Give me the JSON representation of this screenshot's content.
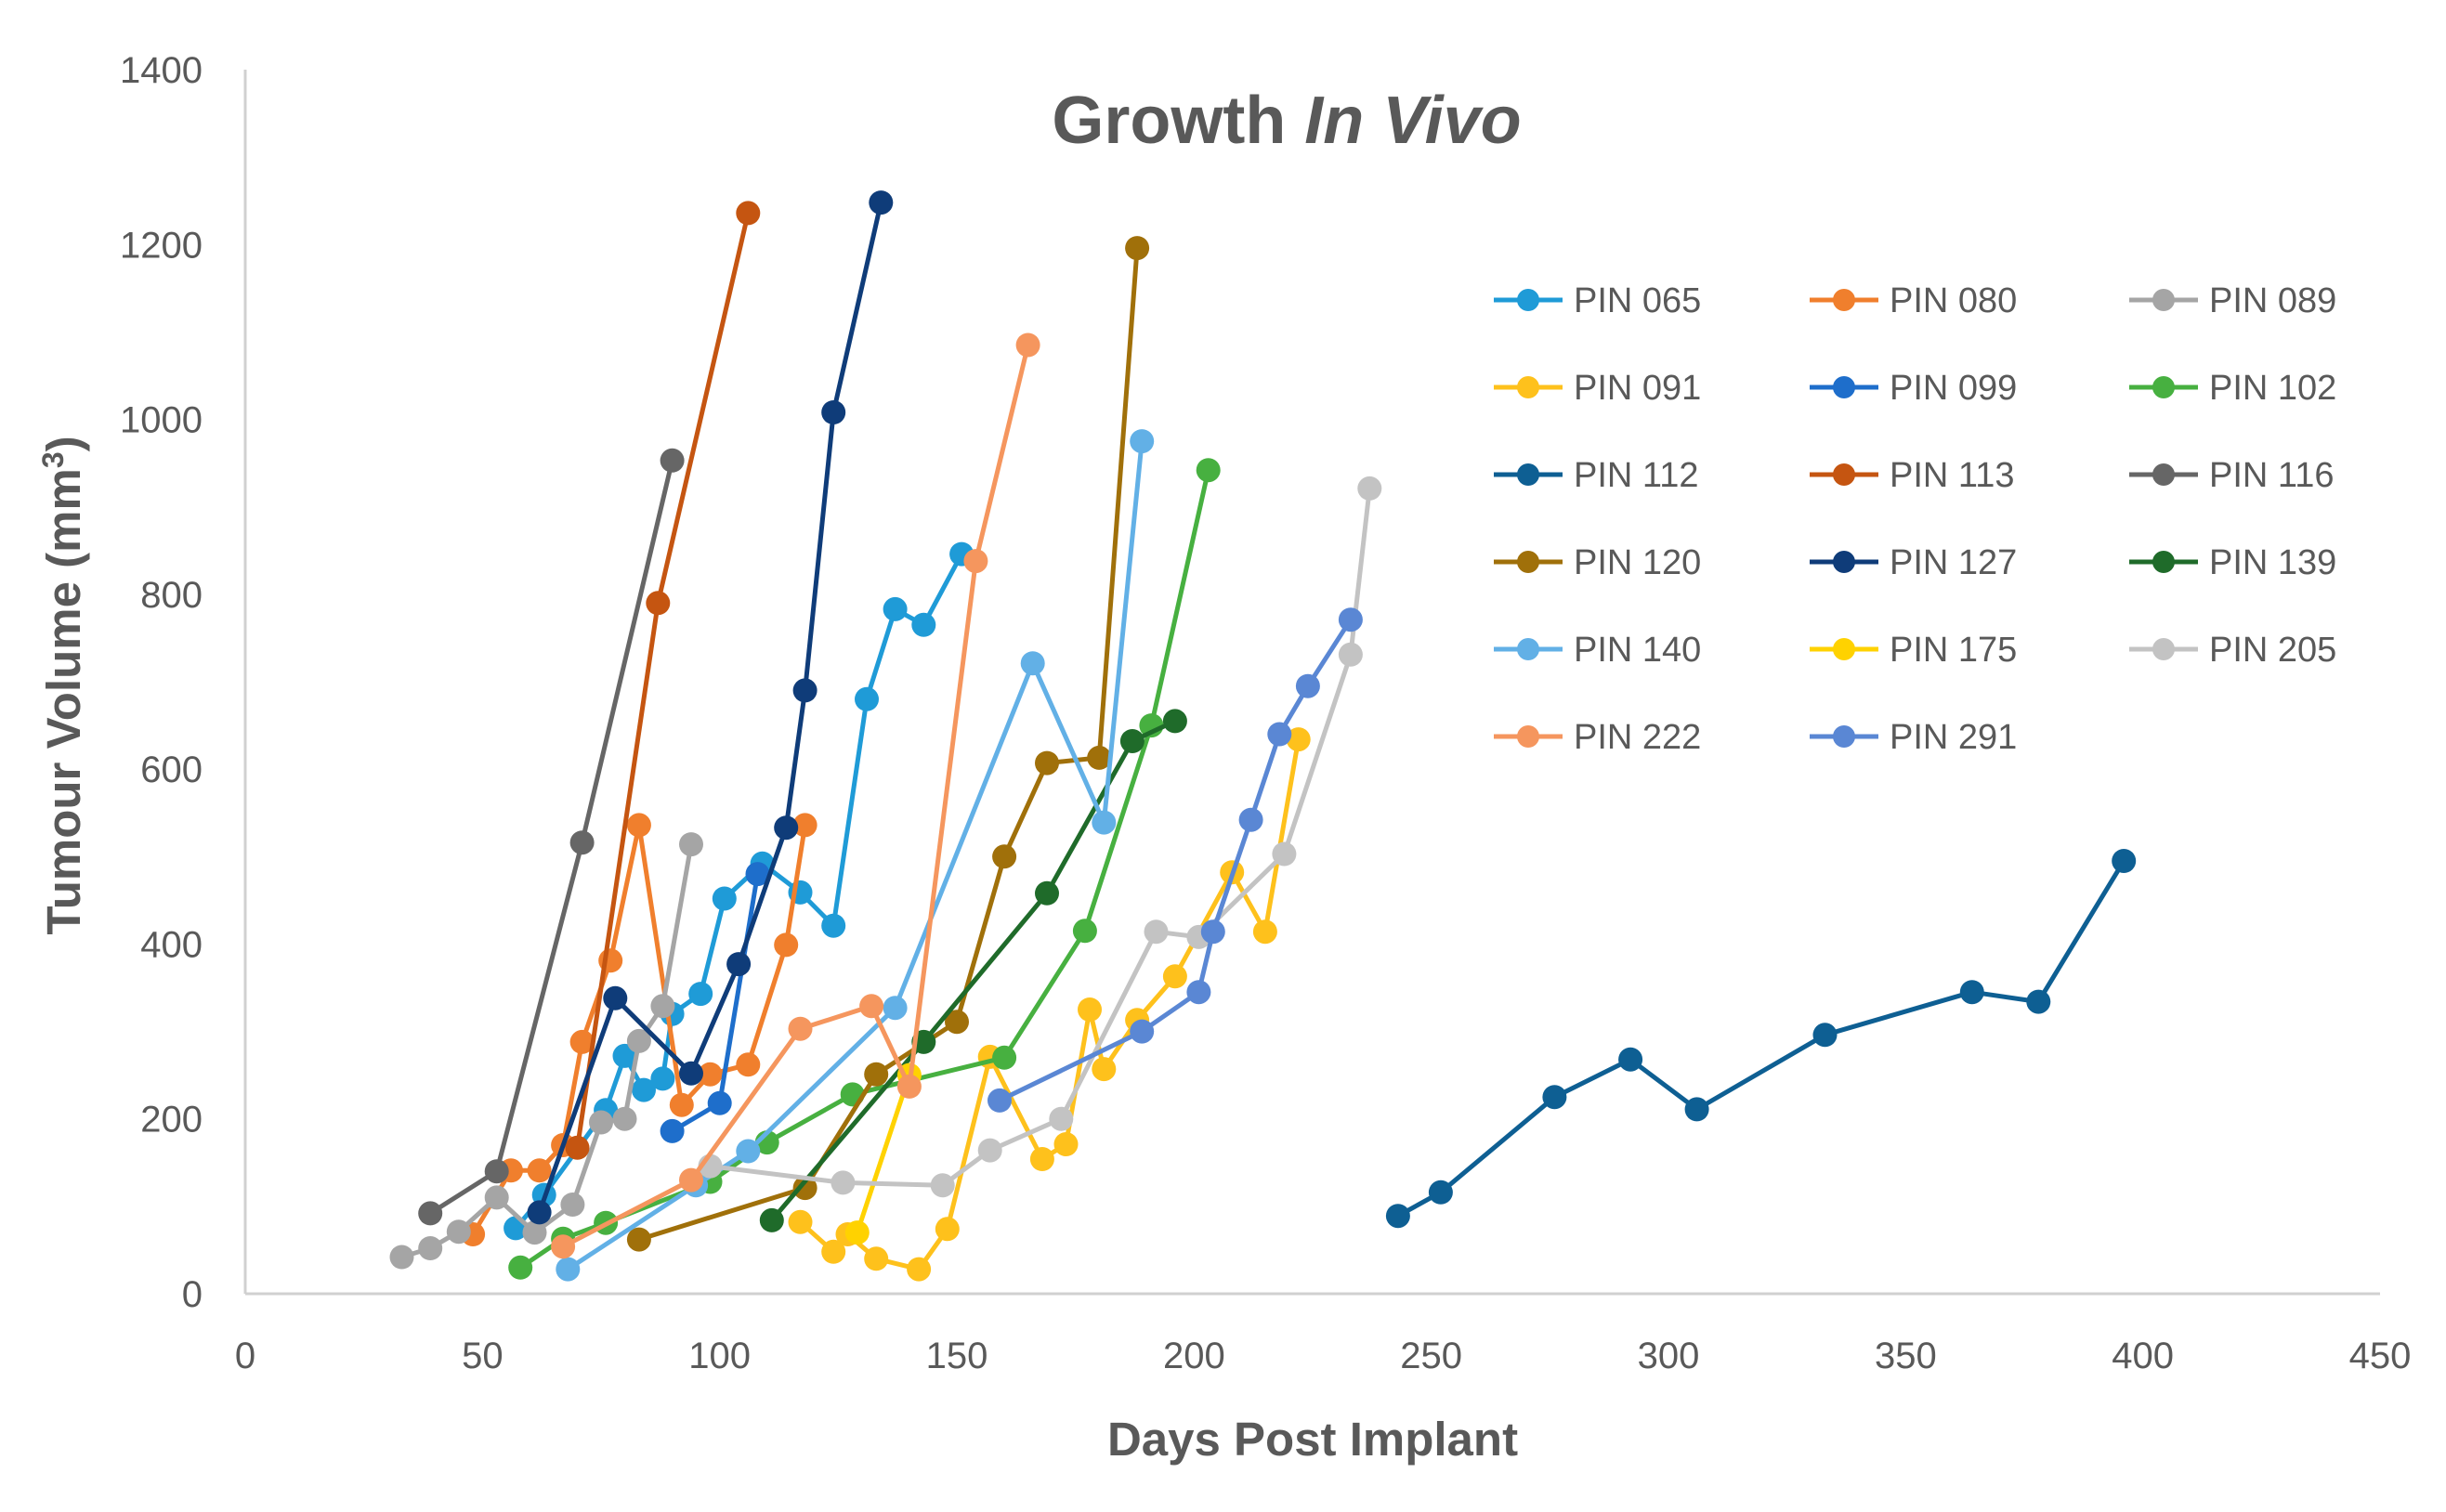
{
  "chart_data": {
    "type": "line",
    "title_main": "Growth ",
    "title_italic": "In Vivo",
    "xlabel": "Days Post Implant",
    "ylabel_main": "Tumour Volume (mm",
    "ylabel_sup": "3",
    "ylabel_close": ")",
    "xlim": [
      0,
      450
    ],
    "ylim": [
      0,
      1400
    ],
    "xticks": [
      0,
      50,
      100,
      150,
      200,
      250,
      300,
      350,
      400,
      450
    ],
    "yticks": [
      0,
      200,
      400,
      600,
      800,
      1000,
      1200,
      1400
    ],
    "grid": false,
    "legend_position": "right",
    "series": [
      {
        "name": "PIN 065",
        "color": "#1f9bd7",
        "x": [
          57,
          63,
          76,
          80,
          84,
          88,
          90,
          96,
          101,
          109,
          117,
          124,
          131,
          137,
          143,
          151
        ],
        "y": [
          75,
          113,
          210,
          272,
          233,
          246,
          320,
          343,
          452,
          492,
          459,
          421,
          680,
          783,
          765,
          846
        ]
      },
      {
        "name": "PIN 080",
        "color": "#f07f2d",
        "x": [
          48,
          56,
          62,
          67,
          71,
          77,
          83,
          92,
          98,
          106,
          114,
          118
        ],
        "y": [
          68,
          141,
          141,
          170,
          288,
          381,
          536,
          216,
          251,
          262,
          399,
          536
        ]
      },
      {
        "name": "PIN 089",
        "color": "#a5a5a5",
        "x": [
          33,
          39,
          45,
          53,
          61,
          69,
          75,
          80,
          83,
          88,
          94
        ],
        "y": [
          42,
          52,
          71,
          110,
          70,
          102,
          196,
          200,
          289,
          329,
          514
        ]
      },
      {
        "name": "PIN 091",
        "color": "#fec11c",
        "x": [
          117,
          124,
          127,
          133,
          142,
          148,
          157,
          168,
          173,
          178,
          181,
          188,
          196,
          208,
          215,
          222
        ],
        "y": [
          82,
          48,
          68,
          40,
          28,
          74,
          271,
          154,
          171,
          325,
          257,
          313,
          363,
          482,
          414,
          634
        ]
      },
      {
        "name": "PIN 099",
        "color": "#1e6ecb",
        "x": [
          90,
          100,
          108
        ],
        "y": [
          186,
          218,
          480
        ]
      },
      {
        "name": "PIN 102",
        "color": "#47b040",
        "x": [
          58,
          67,
          76,
          98,
          110,
          128,
          160,
          177,
          191,
          203
        ],
        "y": [
          30,
          63,
          81,
          128,
          173,
          228,
          270,
          415,
          650,
          942
        ]
      },
      {
        "name": "PIN 112",
        "color": "#0e5f93",
        "x": [
          243,
          252,
          276,
          292,
          306,
          333,
          364,
          378,
          396
        ],
        "y": [
          89,
          116,
          225,
          268,
          211,
          296,
          345,
          334,
          495
        ]
      },
      {
        "name": "PIN 113",
        "color": "#c55511",
        "x": [
          70,
          87,
          106
        ],
        "y": [
          167,
          790,
          1236
        ]
      },
      {
        "name": "PIN 116",
        "color": "#666666",
        "x": [
          39,
          53,
          71,
          90
        ],
        "y": [
          92,
          140,
          516,
          953
        ]
      },
      {
        "name": "PIN 120",
        "color": "#a0700a",
        "x": [
          83,
          118,
          133,
          150,
          160,
          169,
          180,
          188
        ],
        "y": [
          62,
          121,
          251,
          311,
          500,
          607,
          613,
          1196
        ]
      },
      {
        "name": "PIN 127",
        "color": "#0f3c79",
        "x": [
          62,
          78,
          94,
          104,
          114,
          118,
          124,
          134
        ],
        "y": [
          93,
          338,
          252,
          377,
          533,
          690,
          1008,
          1248
        ]
      },
      {
        "name": "PIN 139",
        "color": "#1f6b2a",
        "x": [
          111,
          143,
          169,
          187,
          196
        ],
        "y": [
          84,
          288,
          458,
          632,
          655
        ]
      },
      {
        "name": "PIN 140",
        "color": "#62b0e6",
        "x": [
          68,
          95,
          106,
          137,
          166,
          181,
          189
        ],
        "y": [
          28,
          124,
          163,
          327,
          721,
          539,
          975
        ]
      },
      {
        "name": "PIN 175",
        "color": "#ffd200",
        "x": [
          129,
          140
        ],
        "y": [
          70,
          250
        ]
      },
      {
        "name": "PIN 205",
        "color": "#c3c3c3",
        "x": [
          98,
          126,
          147,
          157,
          172,
          192,
          201,
          219,
          233,
          237
        ],
        "y": [
          146,
          127,
          124,
          164,
          200,
          414,
          408,
          503,
          731,
          921
        ]
      },
      {
        "name": "PIN 222",
        "color": "#f5965e",
        "x": [
          67,
          94,
          117,
          132,
          140,
          154,
          165
        ],
        "y": [
          54,
          130,
          303,
          329,
          237,
          838,
          1085
        ]
      },
      {
        "name": "PIN 291",
        "color": "#5a87d4",
        "x": [
          159,
          189,
          201,
          204,
          212,
          218,
          224,
          233
        ],
        "y": [
          221,
          300,
          345,
          414,
          542,
          640,
          695,
          771
        ]
      }
    ]
  }
}
